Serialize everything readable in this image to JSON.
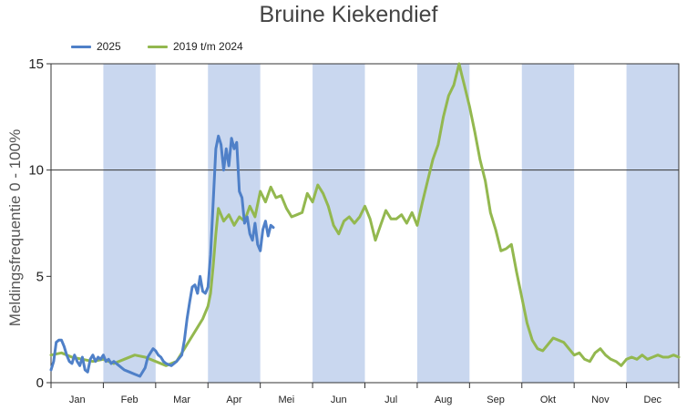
{
  "chart_data": {
    "type": "line",
    "title": "Bruine Kiekendief",
    "ylabel": "Meldingsfrequentie 0 - 100%",
    "xlabel": "",
    "ylim": [
      0,
      15
    ],
    "xlim": [
      0,
      12
    ],
    "yticks": [
      0,
      5,
      10,
      15
    ],
    "months": [
      "Jan",
      "Feb",
      "Mar",
      "Apr",
      "Mei",
      "Jun",
      "Jul",
      "Aug",
      "Sep",
      "Okt",
      "Nov",
      "Dec"
    ],
    "shaded_months": [
      1,
      3,
      5,
      7,
      9,
      11
    ],
    "shade_color": "#c9d7ef",
    "gridlines_y": [
      10
    ],
    "legend_position": "top-left",
    "series": [
      {
        "name": "2025",
        "color": "#4f80c8",
        "x": [
          0.0,
          0.05,
          0.1,
          0.15,
          0.2,
          0.25,
          0.3,
          0.35,
          0.4,
          0.45,
          0.5,
          0.55,
          0.6,
          0.65,
          0.7,
          0.75,
          0.8,
          0.85,
          0.9,
          0.95,
          1.0,
          1.05,
          1.1,
          1.15,
          1.2,
          1.3,
          1.4,
          1.5,
          1.6,
          1.7,
          1.8,
          1.85,
          1.9,
          1.95,
          2.0,
          2.05,
          2.1,
          2.15,
          2.2,
          2.3,
          2.4,
          2.5,
          2.55,
          2.6,
          2.65,
          2.7,
          2.75,
          2.8,
          2.85,
          2.9,
          2.95,
          3.0,
          3.05,
          3.1,
          3.15,
          3.2,
          3.25,
          3.3,
          3.35,
          3.4,
          3.45,
          3.5,
          3.55,
          3.6,
          3.65,
          3.7,
          3.75,
          3.8,
          3.85,
          3.9,
          3.95,
          4.0,
          4.05,
          4.1,
          4.15,
          4.2,
          4.25
        ],
        "values": [
          0.6,
          1.0,
          1.9,
          2.0,
          2.0,
          1.7,
          1.3,
          1.0,
          0.9,
          1.3,
          1.0,
          0.8,
          1.2,
          0.6,
          0.5,
          1.1,
          1.3,
          1.0,
          1.2,
          1.1,
          1.3,
          1.0,
          1.1,
          0.9,
          1.0,
          0.8,
          0.6,
          0.5,
          0.4,
          0.3,
          0.7,
          1.2,
          1.4,
          1.6,
          1.5,
          1.3,
          1.2,
          1.0,
          0.9,
          0.8,
          1.0,
          1.3,
          2.0,
          3.0,
          3.8,
          4.5,
          4.6,
          4.2,
          5.0,
          4.3,
          4.2,
          4.5,
          6.0,
          8.5,
          11.0,
          11.6,
          11.2,
          10.0,
          11.0,
          10.2,
          11.5,
          11.0,
          11.3,
          9.0,
          8.7,
          7.5,
          7.8,
          7.0,
          6.7,
          7.5,
          6.5,
          6.2,
          7.2,
          7.6,
          6.9,
          7.4,
          7.3
        ]
      },
      {
        "name": "2019 t/m 2024",
        "color": "#93b84f",
        "x": [
          0.0,
          0.2,
          0.4,
          0.6,
          0.8,
          1.0,
          1.2,
          1.4,
          1.6,
          1.8,
          2.0,
          2.2,
          2.4,
          2.6,
          2.8,
          2.9,
          3.0,
          3.05,
          3.1,
          3.15,
          3.2,
          3.3,
          3.4,
          3.5,
          3.6,
          3.7,
          3.8,
          3.9,
          4.0,
          4.1,
          4.2,
          4.3,
          4.4,
          4.5,
          4.6,
          4.7,
          4.8,
          4.9,
          5.0,
          5.1,
          5.2,
          5.3,
          5.4,
          5.5,
          5.6,
          5.7,
          5.8,
          5.9,
          6.0,
          6.1,
          6.2,
          6.3,
          6.4,
          6.5,
          6.6,
          6.7,
          6.8,
          6.9,
          7.0,
          7.1,
          7.2,
          7.3,
          7.4,
          7.5,
          7.6,
          7.7,
          7.8,
          7.85,
          7.9,
          8.0,
          8.1,
          8.2,
          8.3,
          8.4,
          8.5,
          8.6,
          8.7,
          8.8,
          8.9,
          9.0,
          9.1,
          9.2,
          9.3,
          9.4,
          9.5,
          9.6,
          9.7,
          9.8,
          9.9,
          10.0,
          10.1,
          10.2,
          10.3,
          10.4,
          10.5,
          10.6,
          10.7,
          10.8,
          10.9,
          11.0,
          11.1,
          11.2,
          11.3,
          11.4,
          11.5,
          11.6,
          11.7,
          11.8,
          11.9,
          12.0
        ],
        "values": [
          1.3,
          1.4,
          1.2,
          1.1,
          1.0,
          1.1,
          0.9,
          1.1,
          1.3,
          1.2,
          1.0,
          0.8,
          1.0,
          1.8,
          2.6,
          3.0,
          3.6,
          4.2,
          5.5,
          7.0,
          8.2,
          7.6,
          7.9,
          7.4,
          7.8,
          7.6,
          8.3,
          7.8,
          9.0,
          8.5,
          9.2,
          8.7,
          8.8,
          8.2,
          7.8,
          7.9,
          8.0,
          8.9,
          8.5,
          9.3,
          8.9,
          8.3,
          7.4,
          7.0,
          7.6,
          7.8,
          7.5,
          7.8,
          8.3,
          7.7,
          6.7,
          7.4,
          8.1,
          7.7,
          7.7,
          7.9,
          7.5,
          8.0,
          7.4,
          8.5,
          9.5,
          10.5,
          11.2,
          12.5,
          13.5,
          14.0,
          15.0,
          14.5,
          14.0,
          13.0,
          11.8,
          10.5,
          9.5,
          8.0,
          7.2,
          6.2,
          6.3,
          6.5,
          5.2,
          4.0,
          2.8,
          2.0,
          1.6,
          1.5,
          1.8,
          2.1,
          2.0,
          1.9,
          1.6,
          1.3,
          1.4,
          1.1,
          1.0,
          1.4,
          1.6,
          1.3,
          1.1,
          1.0,
          0.8,
          1.1,
          1.2,
          1.1,
          1.3,
          1.1,
          1.2,
          1.3,
          1.2,
          1.2,
          1.3,
          1.2
        ]
      }
    ]
  }
}
